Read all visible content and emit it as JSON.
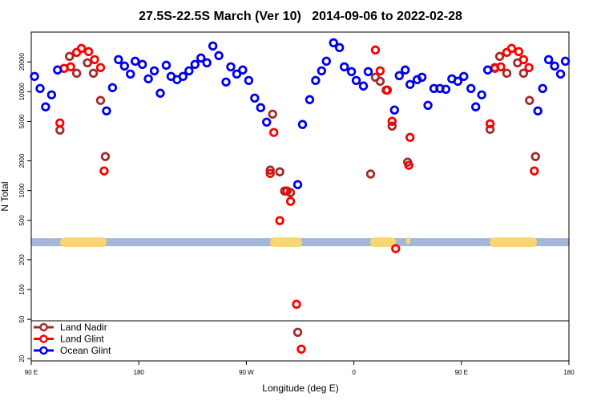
{
  "chart_data": {
    "type": "scatter",
    "title": "27.5S-22.5S March (Ver 10)   2014-09-06 to 2022-02-28",
    "x_label": "Longitude (deg E)",
    "y_label": "N Total",
    "log_y": true,
    "xlim": [
      90,
      540
    ],
    "ylim": [
      19,
      40000
    ],
    "xticks": [
      {
        "value": 90,
        "label": "90 E"
      },
      180,
      {
        "value": 270,
        "label": "90 W"
      },
      {
        "value": 360,
        "label": "0"
      },
      {
        "value": 450,
        "label": "90 E"
      },
      {
        "value": 540,
        "label": "180"
      }
    ],
    "yticks": [
      20,
      50,
      100,
      200,
      500,
      1000,
      2000,
      5000,
      10000,
      20000
    ],
    "legend": "lower left",
    "series": [
      {
        "name": "Land Nadir",
        "color": "#a52a2a",
        "x": [
          114,
          117.5,
          122,
          128,
          137,
          142,
          148,
          152,
          290,
          292,
          298,
          302,
          307,
          313,
          374,
          378,
          382,
          387,
          392,
          405,
          474,
          478,
          482,
          488,
          497,
          502,
          507,
          512
        ],
        "values": [
          4090,
          17180,
          22700,
          15350,
          19560,
          15350,
          8150,
          2210,
          1610,
          5930,
          1550,
          990,
          955,
          37,
          1470,
          13990,
          12740,
          10380,
          4490,
          1940,
          4160,
          17180,
          22700,
          15350,
          19560,
          15350,
          8150,
          2210
        ]
      },
      {
        "name": "Land Glint",
        "color": "#ff0000",
        "x": [
          114,
          117.5,
          123,
          128,
          132,
          138,
          143,
          148,
          151,
          290,
          293,
          298,
          304,
          307,
          312,
          316,
          378,
          382,
          388,
          392,
          395,
          406,
          407,
          474,
          478,
          483,
          488,
          492,
          498,
          502,
          506.5,
          511
        ],
        "values": [
          4830,
          17180,
          17820,
          24940,
          27360,
          25400,
          21090,
          17500,
          1580,
          1490,
          3870,
          497,
          990,
          778,
          71,
          25,
          26360,
          16240,
          10380,
          5020,
          259,
          1800,
          3450,
          4740,
          17500,
          17820,
          24940,
          27360,
          25400,
          21090,
          17500,
          1580
        ]
      },
      {
        "name": "Ocean Glint",
        "color": "#0000ee",
        "x": [
          92.7,
          97.4,
          102,
          107,
          112,
          153,
          158,
          163,
          168,
          173,
          177,
          183,
          188,
          193,
          198,
          203,
          207,
          212,
          217,
          222,
          227,
          232,
          237,
          242,
          247,
          253,
          257,
          262,
          267,
          272,
          277,
          282,
          287,
          313,
          317,
          323,
          328,
          333,
          337,
          343,
          348,
          352,
          358,
          362,
          368,
          372,
          394,
          398,
          403,
          407,
          413,
          417,
          422,
          427,
          432,
          437,
          442,
          447,
          452,
          458,
          462,
          467,
          472,
          514,
          518,
          523,
          528,
          533,
          537
        ],
        "values": [
          14260,
          10770,
          7020,
          9280,
          16560,
          6390,
          10980,
          21090,
          18150,
          15070,
          20310,
          18850,
          13480,
          16240,
          9640,
          18490,
          14260,
          13230,
          14260,
          16240,
          18850,
          21880,
          19560,
          28940,
          23130,
          12510,
          17820,
          15070,
          16560,
          12980,
          8610,
          6890,
          4920,
          1150,
          4660,
          8300,
          12980,
          16240,
          20310,
          31180,
          27870,
          17820,
          15930,
          12980,
          11400,
          15930,
          6520,
          14520,
          16560,
          11830,
          13230,
          13990,
          7280,
          10770,
          10770,
          10570,
          13480,
          12740,
          14260,
          10770,
          7020,
          9280,
          16560,
          6390,
          10770,
          21090,
          18150,
          15070,
          20310
        ]
      }
    ]
  }
}
